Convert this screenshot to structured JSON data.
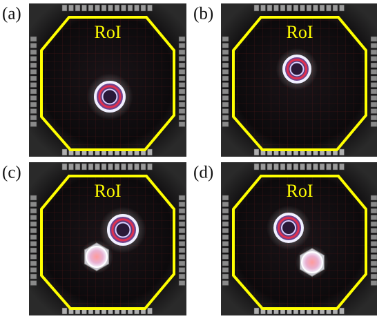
{
  "panels": [
    {
      "label": "(a)",
      "roi": "RoI"
    },
    {
      "label": "(b)",
      "roi": "RoI"
    },
    {
      "label": "(c)",
      "roi": "RoI"
    },
    {
      "label": "(d)",
      "roi": "RoI"
    }
  ]
}
